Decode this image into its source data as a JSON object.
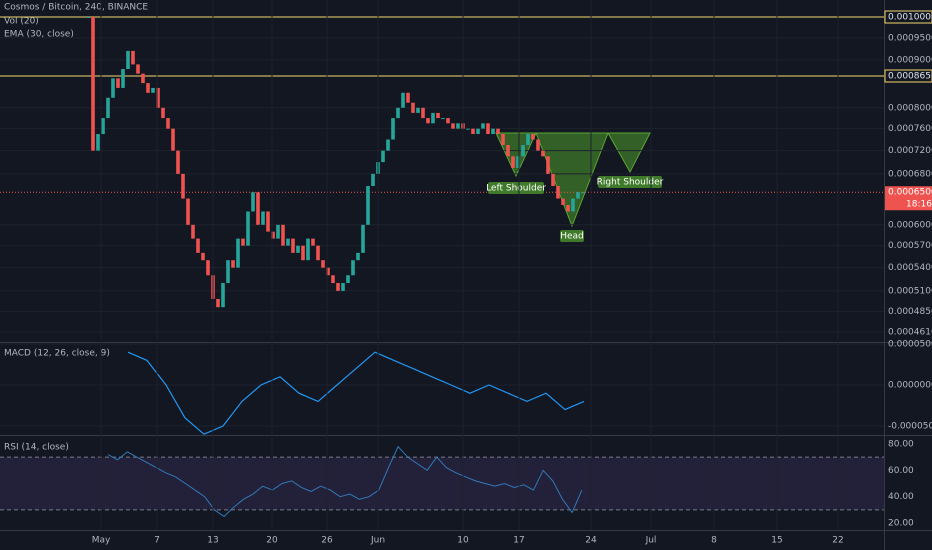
{
  "header": {
    "symbol": "Cosmos / Bitcoin, 240, BINANCE",
    "vol": "Vol (20)",
    "ema": "EMA (30, close)"
  },
  "price_axis": {
    "log_scale": true,
    "ticks": [
      {
        "value": 0.00095,
        "label": "0.0009500"
      },
      {
        "value": 0.0009,
        "label": "0.0009000"
      },
      {
        "value": 0.0008,
        "label": "0.0008000"
      },
      {
        "value": 0.00076,
        "label": "0.0007600"
      },
      {
        "value": 0.00072,
        "label": "0.0007200"
      },
      {
        "value": 0.00068,
        "label": "0.0006800"
      },
      {
        "value": 0.0006,
        "label": "0.0006000"
      },
      {
        "value": 0.00057,
        "label": "0.0005700"
      },
      {
        "value": 0.00054,
        "label": "0.0005400"
      },
      {
        "value": 0.00051,
        "label": "0.0005100"
      },
      {
        "value": 0.000485,
        "label": "0.0004850"
      },
      {
        "value": 0.000461,
        "label": "0.0004610"
      }
    ],
    "levels": [
      {
        "value": 0.001,
        "label": "0.0010000",
        "color": "#f5d76e"
      },
      {
        "value": 0.000865,
        "label": "0.0008650",
        "color": "#f5d76e"
      }
    ],
    "last": {
      "value": 0.00065,
      "label": "0.0006500",
      "countdown": "18:16",
      "color": "#ef5350"
    }
  },
  "price_series": [
    0.001,
    0.00072,
    0.00075,
    0.00078,
    0.00082,
    0.00086,
    0.00084,
    0.00088,
    0.00092,
    0.00089,
    0.00087,
    0.00085,
    0.00083,
    0.00084,
    0.0008,
    0.00078,
    0.00076,
    0.00072,
    0.00068,
    0.00064,
    0.0006,
    0.00058,
    0.00056,
    0.00055,
    0.00053,
    0.0005,
    0.00049,
    0.00052,
    0.00055,
    0.00054,
    0.00058,
    0.00057,
    0.00062,
    0.00065,
    0.0006,
    0.00062,
    0.00059,
    0.00058,
    0.0006,
    0.00057,
    0.00058,
    0.00056,
    0.00057,
    0.00055,
    0.00058,
    0.00057,
    0.00055,
    0.00054,
    0.00053,
    0.00052,
    0.00051,
    0.00052,
    0.00053,
    0.00055,
    0.00056,
    0.0006,
    0.00066,
    0.00068,
    0.0007,
    0.00072,
    0.00074,
    0.00078,
    0.0008,
    0.00083,
    0.00081,
    0.00079,
    0.0008,
    0.00078,
    0.00077,
    0.00079,
    0.00078,
    0.00078,
    0.00077,
    0.00076,
    0.00077,
    0.00076,
    0.00076,
    0.00075,
    0.00076,
    0.00077,
    0.00075,
    0.00076,
    0.00075,
    0.00073,
    0.00071,
    0.00069,
    0.00071,
    0.00073,
    0.00075,
    0.00074,
    0.00072,
    0.00071,
    0.00068,
    0.00066,
    0.00064,
    0.00063,
    0.00062,
    0.00064,
    0.00065,
    0.00065
  ],
  "annotations": [
    "Left Shoulder",
    "Head",
    "Right Shoulder"
  ],
  "macd": {
    "title": "MACD (12, 26, close, 9)",
    "ticks": [
      {
        "value": 5e-05,
        "label": "0.0000500"
      },
      {
        "value": 0,
        "label": "0.0000000"
      },
      {
        "value": -5e-05,
        "label": "-0.0000500"
      }
    ],
    "values": [
      4e-05,
      3e-05,
      0.0,
      -4e-05,
      -6e-05,
      -5e-05,
      -2e-05,
      0.0,
      1e-05,
      -1e-05,
      -2e-05,
      0.0,
      2e-05,
      4e-05,
      3e-05,
      2e-05,
      1e-05,
      0.0,
      -1e-05,
      0.0,
      -1e-05,
      -2e-05,
      -1e-05,
      -3e-05,
      -2e-05
    ]
  },
  "rsi": {
    "title": "RSI (14, close)",
    "ticks": [
      {
        "value": 80,
        "label": "80.00"
      },
      {
        "value": 60,
        "label": "60.00"
      },
      {
        "value": 40,
        "label": "40.00"
      },
      {
        "value": 20,
        "label": "20.00"
      }
    ],
    "band": [
      30,
      70
    ],
    "values": [
      72,
      68,
      74,
      70,
      66,
      62,
      58,
      55,
      50,
      45,
      40,
      30,
      25,
      32,
      38,
      42,
      48,
      45,
      50,
      52,
      47,
      44,
      48,
      45,
      40,
      42,
      38,
      40,
      45,
      62,
      78,
      70,
      65,
      60,
      70,
      62,
      58,
      55,
      52,
      50,
      48,
      50,
      47,
      49,
      45,
      60,
      52,
      38,
      28,
      45
    ]
  },
  "time_axis": [
    "May",
    "7",
    "13",
    "20",
    "26",
    "Jun",
    "10",
    "17",
    "24",
    "Jul",
    "8",
    "15",
    "22"
  ]
}
